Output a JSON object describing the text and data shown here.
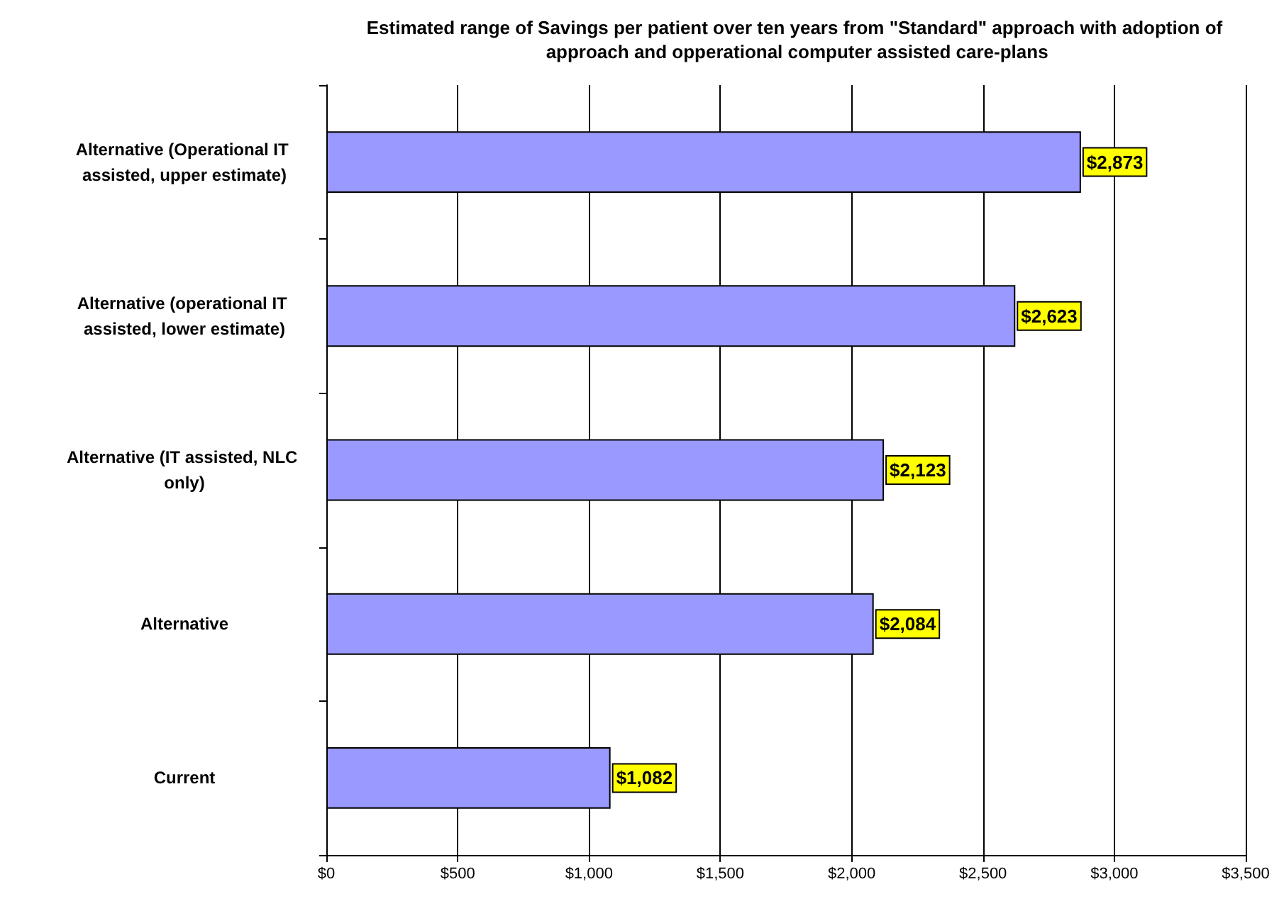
{
  "chart_data": {
    "type": "bar",
    "orientation": "horizontal",
    "title": "Estimated range of Savings per patient over ten years from \"Standard\" approach with adoption of approach and opperational computer assisted care-plans",
    "categories": [
      "Alternative (Operational IT assisted, upper estimate)",
      "Alternative (operational IT assisted, lower estimate)",
      "Alternative (IT assisted, NLC only)",
      "Alternative",
      "Current"
    ],
    "values": [
      2873,
      2623,
      2123,
      2084,
      1082
    ],
    "value_labels": [
      "$2,873",
      "$2,623",
      "$2,123",
      "$2,084",
      "$1,082"
    ],
    "color": "#9999ff",
    "xlim": [
      0,
      3500
    ],
    "xticks": [
      {
        "value": 0,
        "label": "$0"
      },
      {
        "value": 500,
        "label": "$500"
      },
      {
        "value": 1000,
        "label": "$1,000"
      },
      {
        "value": 1500,
        "label": "$1,500"
      },
      {
        "value": 2000,
        "label": "$2,000"
      },
      {
        "value": 2500,
        "label": "$2,500"
      },
      {
        "value": 3000,
        "label": "$3,000"
      },
      {
        "value": 3500,
        "label": "$3,500"
      }
    ],
    "grid": "x"
  }
}
